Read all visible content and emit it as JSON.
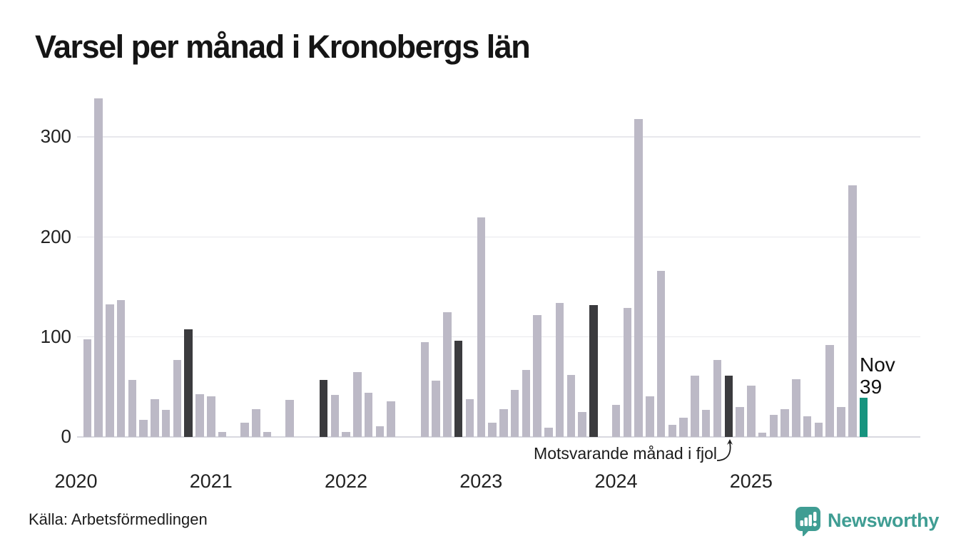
{
  "title": "Varsel per månad i Kronobergs län",
  "source": "Källa: Arbetsförmedlingen",
  "annotation": {
    "text": "Motsvarande månad i fjol"
  },
  "current_label": {
    "month": "Nov",
    "value": "39"
  },
  "logo": {
    "text": "Newsworthy"
  },
  "colors": {
    "bar": "#bcb9c6",
    "lastyear_bar": "#3b3b3e",
    "current_bar": "#17947f",
    "logo_teal": "#3f9d93",
    "grid": "#e8e8ec",
    "text": "#222222"
  },
  "chart_data": {
    "type": "bar",
    "title": "Varsel per månad i Kronobergs län",
    "x_unit": "month",
    "start_month": "2020-01",
    "end_month": "2025-11",
    "ylabel": "",
    "xlabel": "",
    "ylim": [
      0,
      340
    ],
    "y_ticks": [
      0,
      100,
      200,
      300
    ],
    "year_tick_labels": [
      "2020",
      "2021",
      "2022",
      "2023",
      "2024",
      "2025"
    ],
    "values": [
      0,
      98,
      339,
      133,
      137,
      57,
      17,
      38,
      27,
      77,
      108,
      43,
      41,
      5,
      0,
      14,
      28,
      5,
      0,
      37,
      0,
      0,
      57,
      42,
      5,
      65,
      44,
      11,
      36,
      0,
      0,
      95,
      56,
      125,
      96,
      38,
      220,
      14,
      28,
      47,
      67,
      122,
      9,
      134,
      62,
      25,
      132,
      0,
      32,
      129,
      318,
      41,
      166,
      12,
      19,
      61,
      27,
      77,
      61,
      30,
      51,
      4,
      22,
      28,
      58,
      21,
      14,
      92,
      30,
      252,
      39
    ],
    "lastyear_month_indices": [
      10,
      22,
      34,
      46,
      58
    ],
    "current_month_index": 70,
    "annotation_text": "Motsvarande månad i fjol",
    "current_point_label": "Nov 39",
    "grid": "horizontal",
    "legend_position": "none"
  }
}
